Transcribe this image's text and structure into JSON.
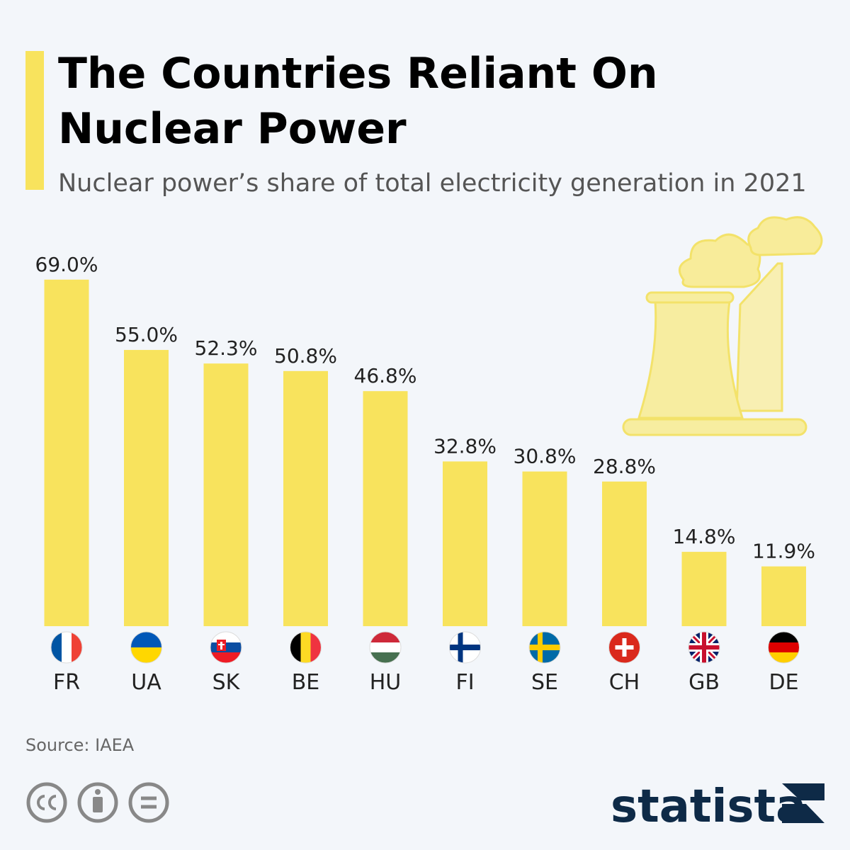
{
  "chart_data": {
    "type": "bar",
    "title": "The Countries Reliant On Nuclear Power",
    "subtitle": "Nuclear power’s share of total electricity generation in 2021",
    "categories": [
      "FR",
      "UA",
      "SK",
      "BE",
      "HU",
      "FI",
      "SE",
      "CH",
      "GB",
      "DE"
    ],
    "values": [
      69.0,
      55.0,
      52.3,
      50.8,
      46.8,
      32.8,
      30.8,
      28.8,
      14.8,
      11.9
    ],
    "value_labels": [
      "69.0%",
      "55.0%",
      "52.3%",
      "50.8%",
      "46.8%",
      "32.8%",
      "30.8%",
      "28.8%",
      "14.8%",
      "11.9%"
    ],
    "color": "#f8e35d",
    "source": "Source: IAEA",
    "brand": "statista"
  }
}
